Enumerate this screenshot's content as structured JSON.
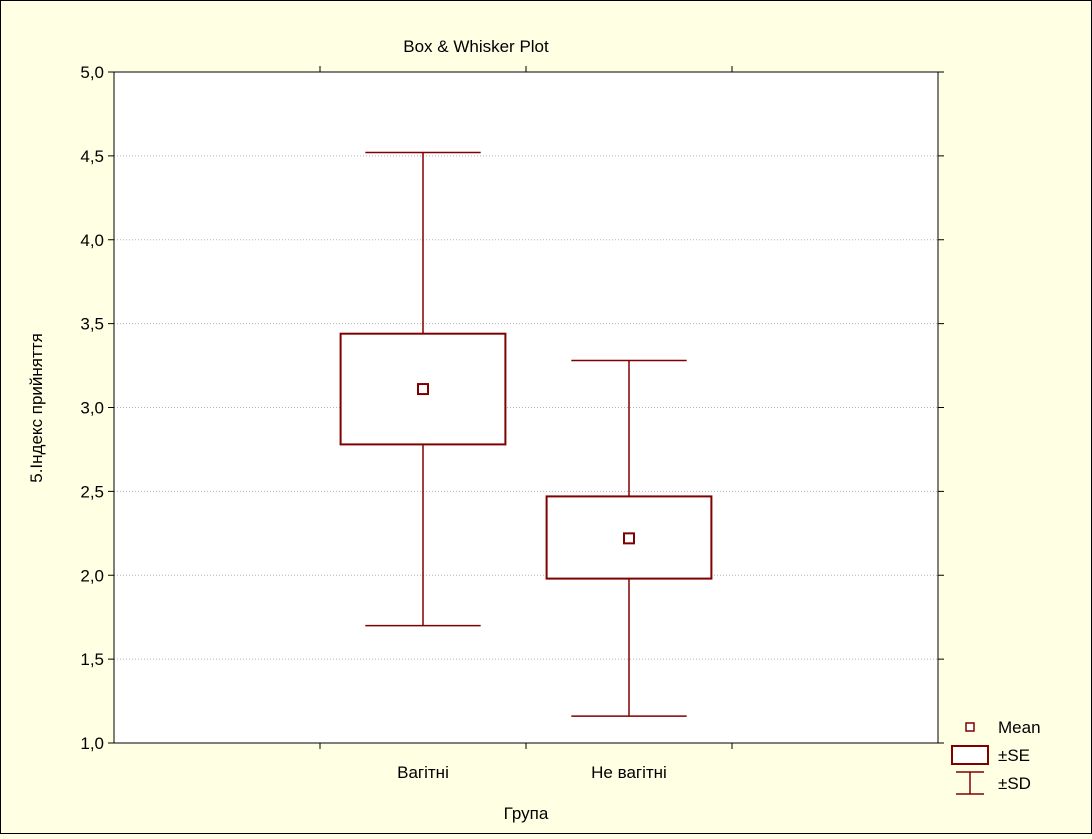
{
  "chart_data": {
    "type": "box",
    "title": "Box & Whisker Plot",
    "xlabel": "Група",
    "ylabel": "5.Індекс прийняття",
    "categories": [
      "Вагітні",
      "Не вагітні"
    ],
    "ylim": [
      1.0,
      5.0
    ],
    "yticks": [
      "1,0",
      "1,5",
      "2,0",
      "2,5",
      "3,0",
      "3,5",
      "4,0",
      "4,5",
      "5,0"
    ],
    "grid": true,
    "legend_position": "bottom-right",
    "series_color": "#800000",
    "boxes": [
      {
        "category": "Вагітні",
        "mean": 3.11,
        "se_low": 2.78,
        "se_high": 3.44,
        "sd_low": 1.7,
        "sd_high": 4.52
      },
      {
        "category": "Не вагітні",
        "mean": 2.22,
        "se_low": 1.98,
        "se_high": 2.47,
        "sd_low": 1.16,
        "sd_high": 3.28
      }
    ],
    "legend": [
      {
        "symbol": "mean",
        "label": "Mean"
      },
      {
        "symbol": "se",
        "label": "±SE"
      },
      {
        "symbol": "sd",
        "label": "±SD"
      }
    ]
  }
}
